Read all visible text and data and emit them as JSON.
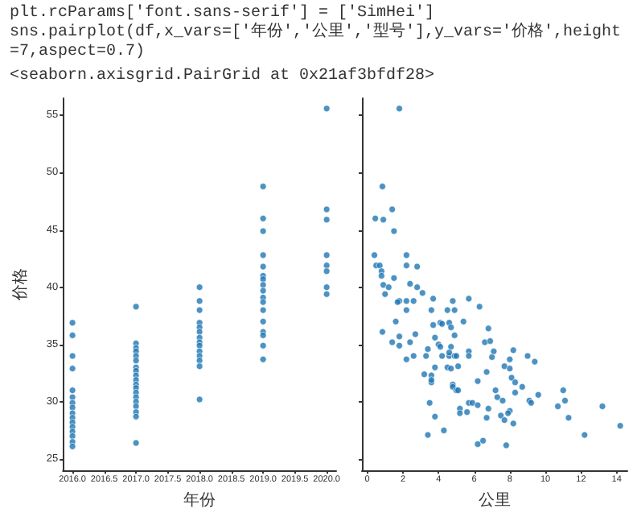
{
  "chart_data": [
    {
      "type": "scatter",
      "annotations": [
        "plt.rcParams['font.sans-serif'] = ['SimHei']",
        "sns.pairplot(df,x_vars=['年份','公里','型号'],y_vars='价格',height=7,aspect=0.7)",
        "<seaborn.axisgrid.PairGrid at 0x21af3bfdf28>"
      ],
      "xlabel": "年份",
      "ylabel": "价格",
      "color": "#1f77b4",
      "marker": "circle",
      "x": [
        2016,
        2016,
        2016,
        2016,
        2016,
        2016,
        2016,
        2016,
        2016,
        2016,
        2016,
        2016,
        2016,
        2016,
        2016,
        2016,
        2017,
        2017,
        2017,
        2017,
        2017,
        2017,
        2017,
        2017,
        2017,
        2017,
        2017,
        2017,
        2017,
        2017,
        2017,
        2017,
        2017,
        2017,
        2017,
        2018,
        2018,
        2018,
        2018,
        2018,
        2018,
        2018,
        2018,
        2018,
        2018,
        2018,
        2018,
        2018,
        2018,
        2019,
        2019,
        2019,
        2019,
        2019,
        2019,
        2019,
        2019,
        2019,
        2019,
        2019,
        2019,
        2019,
        2019,
        2019,
        2019,
        2019,
        2020,
        2020,
        2020,
        2020,
        2020,
        2020,
        2020,
        2020
      ],
      "values": [
        36.9,
        35.8,
        34.0,
        32.9,
        31.0,
        30.4,
        29.9,
        29.5,
        29.0,
        28.6,
        28.2,
        27.8,
        27.4,
        27.0,
        26.5,
        26.1,
        38.3,
        35.1,
        34.7,
        34.4,
        34.0,
        33.6,
        33.0,
        32.7,
        32.3,
        31.9,
        31.5,
        31.2,
        30.8,
        30.4,
        30.0,
        29.6,
        29.1,
        28.7,
        26.4,
        40.0,
        38.8,
        38.0,
        36.9,
        36.5,
        36.1,
        35.6,
        35.2,
        34.9,
        34.4,
        34.0,
        33.6,
        33.1,
        30.2,
        48.8,
        46.0,
        44.9,
        42.8,
        41.8,
        41.0,
        40.7,
        40.2,
        39.7,
        39.1,
        38.7,
        38.0,
        37.0,
        36.1,
        35.8,
        34.9,
        33.7,
        55.6,
        46.8,
        45.9,
        42.8,
        41.9,
        41.4,
        40.0,
        39.4
      ],
      "xlim": [
        2015.85,
        2020.15
      ],
      "xticks": [
        {
          "value": 2016,
          "label": "2016.0"
        },
        {
          "value": 2016.5,
          "label": "2016.5"
        },
        {
          "value": 2017,
          "label": "2017.0"
        },
        {
          "value": 2017.5,
          "label": "2017.5"
        },
        {
          "value": 2018,
          "label": "2018.0"
        },
        {
          "value": 2018.5,
          "label": "2018.5"
        },
        {
          "value": 2019,
          "label": "2019.0"
        },
        {
          "value": 2019.5,
          "label": "2019.5"
        },
        {
          "value": 2020,
          "label": "2020.0"
        }
      ],
      "ylim": [
        24,
        56.5
      ],
      "yticks": [
        25,
        30,
        35,
        40,
        45,
        50,
        55
      ]
    },
    {
      "type": "scatter",
      "xlabel": "公里",
      "color": "#1f77b4",
      "marker": "circle",
      "tick_labels": "x",
      "x": [
        1.8,
        0.85,
        1.4,
        0.45,
        0.9,
        1.5,
        0.4,
        0.5,
        0.7,
        0.8,
        0.8,
        1.5,
        0.9,
        1.2,
        1.0,
        2.2,
        2.2,
        2.8,
        2.4,
        2.8,
        3.1,
        1.8,
        1.7,
        2.2,
        2.6,
        2.2,
        3.7,
        4.8,
        3.6,
        4.5,
        4.9,
        5.7,
        6.3,
        1.6,
        0.85,
        3.7,
        4.1,
        4.2,
        4.6,
        4.7,
        5.4,
        6.8,
        2.7,
        1.8,
        3.8,
        4.9,
        1.4,
        2.4,
        1.8,
        4.0,
        4.1,
        4.7,
        6.6,
        6.9,
        3.4,
        2.2,
        2.6,
        3.3,
        4.2,
        4.6,
        4.6,
        4.9,
        5.0,
        5.7,
        5.7,
        7.0,
        7.1,
        8.0,
        8.2,
        9.0,
        9.4,
        4.5,
        4.7,
        5.1,
        3.2,
        3.6,
        3.8,
        3.6,
        3.6,
        6.2,
        6.7,
        7.7,
        8.0,
        8.1,
        8.3,
        8.7,
        4.8,
        4.8,
        5.0,
        5.1,
        7.2,
        7.3,
        7.6,
        8.3,
        9.1,
        9.2,
        9.6,
        11.0,
        11.1,
        10.7,
        3.5,
        5.7,
        5.9,
        6.2,
        6.8,
        5.2,
        5.2,
        5.6,
        8.0,
        7.9,
        7.5,
        6.7,
        7.7,
        8.2,
        3.8,
        11.3,
        13.2,
        14.2,
        3.4,
        4.3,
        12.2,
        6.5,
        6.2,
        7.8
      ],
      "values": [
        55.6,
        48.8,
        46.8,
        46.0,
        45.9,
        44.9,
        42.8,
        41.9,
        41.9,
        41.4,
        41.0,
        40.8,
        40.2,
        40.0,
        39.4,
        42.8,
        41.9,
        41.8,
        40.3,
        40.0,
        39.5,
        38.8,
        38.7,
        38.8,
        38.8,
        38.0,
        39.0,
        38.8,
        38.0,
        38.0,
        38.0,
        39.0,
        38.3,
        37.0,
        36.1,
        36.7,
        36.9,
        36.8,
        36.9,
        36.5,
        37.0,
        36.4,
        35.9,
        35.7,
        35.6,
        35.8,
        35.2,
        35.2,
        34.9,
        35.0,
        34.8,
        34.8,
        35.2,
        35.3,
        34.6,
        33.7,
        34.0,
        34.0,
        34.0,
        34.0,
        34.3,
        34.0,
        34.0,
        34.4,
        34.0,
        33.9,
        34.4,
        33.7,
        34.5,
        34.0,
        33.5,
        33.0,
        32.9,
        33.1,
        32.4,
        32.3,
        33.0,
        31.7,
        31.9,
        31.8,
        32.6,
        33.1,
        32.9,
        32.1,
        31.7,
        31.3,
        31.5,
        31.3,
        31.0,
        31.0,
        31.0,
        30.4,
        30.1,
        30.8,
        30.1,
        29.9,
        30.6,
        31.0,
        30.1,
        29.6,
        29.9,
        29.9,
        29.9,
        29.7,
        29.4,
        29.4,
        29.0,
        29.1,
        29.2,
        29.0,
        28.8,
        28.6,
        28.4,
        28.1,
        28.7,
        28.6,
        29.6,
        27.9,
        27.1,
        27.5,
        27.1,
        26.6,
        26.3,
        26.2
      ],
      "xlim": [
        -0.3,
        14.6
      ],
      "xticks": [
        0,
        2,
        4,
        6,
        8,
        10,
        12,
        14
      ],
      "ylim": [
        24,
        56.5
      ],
      "yticks": [
        25,
        30,
        35,
        40,
        45,
        50,
        55
      ]
    }
  ]
}
